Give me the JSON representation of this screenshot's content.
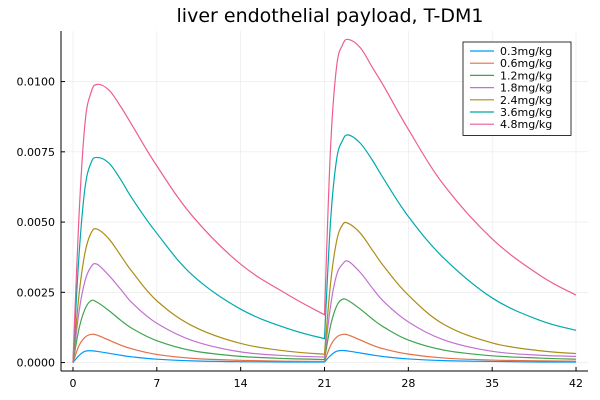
{
  "chart_data": {
    "type": "line",
    "title": "liver endothelial payload, T-DM1",
    "xlabel": "",
    "ylabel": "",
    "xlim": [
      -1,
      43
    ],
    "ylim": [
      -0.0003,
      0.0118
    ],
    "xticks": [
      0,
      7,
      14,
      21,
      28,
      35,
      42
    ],
    "yticks": [
      0.0,
      0.0025,
      0.005,
      0.0075,
      0.01
    ],
    "ytick_labels": [
      "0.0000",
      "0.0025",
      "0.0050",
      "0.0075",
      "0.0100"
    ],
    "grid": true,
    "legend_position": "top-right",
    "series": [
      {
        "name": "0.3mg/kg",
        "color": "#009AFA",
        "x": [
          0,
          0.5,
          1,
          1.5,
          2,
          3,
          4,
          5,
          7,
          10,
          14,
          18,
          21,
          21.5,
          22,
          22.5,
          23,
          24,
          25,
          26,
          28,
          31,
          35,
          39,
          42
        ],
        "y": [
          0,
          0.00025,
          0.0004,
          0.00042,
          0.0004,
          0.00033,
          0.00026,
          0.0002,
          0.00012,
          6e-05,
          3e-05,
          2e-05,
          2e-05,
          0.00025,
          0.0004,
          0.00043,
          0.00041,
          0.00034,
          0.00027,
          0.00021,
          0.00013,
          7e-05,
          4e-05,
          2e-05,
          2e-05
        ]
      },
      {
        "name": "0.6mg/kg",
        "color": "#E36F47",
        "x": [
          0,
          0.5,
          1,
          1.5,
          2,
          3,
          4,
          5,
          7,
          10,
          14,
          18,
          21,
          21.5,
          22,
          22.5,
          23,
          24,
          25,
          26,
          28,
          31,
          35,
          39,
          42
        ],
        "y": [
          0,
          0.0006,
          0.0009,
          0.001,
          0.00098,
          0.0008,
          0.00062,
          0.00048,
          0.00029,
          0.00015,
          8e-05,
          5e-05,
          4e-05,
          0.0006,
          0.0009,
          0.001,
          0.00098,
          0.0008,
          0.00062,
          0.00048,
          0.0003,
          0.00016,
          9e-05,
          6e-05,
          5e-05
        ]
      },
      {
        "name": "1.2mg/kg",
        "color": "#3EA44E",
        "x": [
          0,
          0.5,
          1,
          1.5,
          2,
          3,
          4,
          5,
          7,
          10,
          14,
          18,
          21,
          21.5,
          22,
          22.5,
          23,
          24,
          25,
          26,
          28,
          31,
          35,
          39,
          42
        ],
        "y": [
          0,
          0.0012,
          0.0019,
          0.0022,
          0.00215,
          0.00185,
          0.0015,
          0.0012,
          0.00078,
          0.00042,
          0.00022,
          0.00014,
          0.00011,
          0.0013,
          0.002,
          0.00225,
          0.0022,
          0.0019,
          0.00155,
          0.00125,
          0.0008,
          0.00044,
          0.00024,
          0.00016,
          0.00012
        ]
      },
      {
        "name": "1.8mg/kg",
        "color": "#C271D2",
        "x": [
          0,
          0.5,
          1,
          1.5,
          2,
          3,
          4,
          5,
          7,
          10,
          14,
          18,
          21,
          21.5,
          22,
          22.5,
          23,
          24,
          25,
          26,
          28,
          31,
          35,
          39,
          42
        ],
        "y": [
          0,
          0.0018,
          0.0029,
          0.0034,
          0.0035,
          0.0031,
          0.0026,
          0.0021,
          0.0014,
          0.00078,
          0.00038,
          0.00024,
          0.0002,
          0.002,
          0.0031,
          0.0035,
          0.0036,
          0.0032,
          0.00265,
          0.00215,
          0.00145,
          0.0008,
          0.0004,
          0.00026,
          0.00022
        ]
      },
      {
        "name": "2.4mg/kg",
        "color": "#AC8D18",
        "x": [
          0,
          0.5,
          1,
          1.5,
          2,
          3,
          4,
          5,
          7,
          10,
          14,
          18,
          21,
          21.5,
          22,
          22.5,
          23,
          24,
          25,
          26,
          28,
          31,
          35,
          39,
          42
        ],
        "y": [
          0,
          0.0024,
          0.0039,
          0.0046,
          0.00475,
          0.0044,
          0.0038,
          0.0032,
          0.0022,
          0.0013,
          0.00068,
          0.0004,
          0.0003,
          0.0028,
          0.0043,
          0.0049,
          0.00495,
          0.0046,
          0.004,
          0.0034,
          0.0024,
          0.00135,
          0.0007,
          0.00042,
          0.00032
        ]
      },
      {
        "name": "3.6mg/kg",
        "color": "#00A9AD",
        "x": [
          0,
          0.5,
          1,
          1.5,
          2,
          3,
          4,
          5,
          7,
          10,
          14,
          18,
          21,
          21.5,
          22,
          22.5,
          23,
          24,
          25,
          26,
          28,
          31,
          35,
          39,
          42
        ],
        "y": [
          0,
          0.0038,
          0.0062,
          0.0071,
          0.0073,
          0.0071,
          0.0065,
          0.0058,
          0.0046,
          0.0031,
          0.0019,
          0.0012,
          0.00085,
          0.005,
          0.0072,
          0.0079,
          0.0081,
          0.0078,
          0.0072,
          0.0065,
          0.0052,
          0.0037,
          0.0023,
          0.0015,
          0.00115
        ]
      },
      {
        "name": "4.8mg/kg",
        "color": "#ED5D92",
        "x": [
          0,
          0.5,
          1,
          1.5,
          2,
          3,
          4,
          5,
          7,
          10,
          14,
          18,
          21,
          21.5,
          22,
          22.5,
          23,
          24,
          25,
          26,
          28,
          31,
          35,
          39,
          42
        ],
        "y": [
          0,
          0.0052,
          0.0085,
          0.0096,
          0.0099,
          0.0097,
          0.0091,
          0.0084,
          0.007,
          0.0052,
          0.0035,
          0.0024,
          0.0017,
          0.0076,
          0.0105,
          0.0113,
          0.0115,
          0.0112,
          0.0105,
          0.0098,
          0.0083,
          0.0063,
          0.0044,
          0.0031,
          0.0024
        ]
      }
    ]
  }
}
